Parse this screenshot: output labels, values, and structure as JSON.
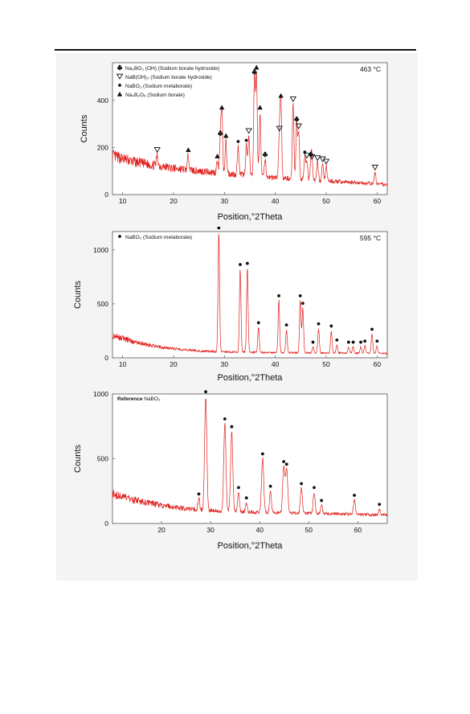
{
  "colors": {
    "trace": "#e0201c",
    "text": "#111111",
    "figure_bg": "#f4f4f4"
  },
  "chart_data": [
    {
      "type": "line",
      "annotation": "463 °C",
      "xlabel": "Position,°2Theta",
      "ylabel": "Counts",
      "xlim": [
        8,
        62
      ],
      "ylim": [
        0,
        560
      ],
      "xticks": [
        "10",
        "20",
        "30",
        "40",
        "50",
        "60"
      ],
      "yticks": [
        "0",
        "200",
        "400"
      ],
      "legend_position": "top-left",
      "legend": [
        {
          "symbol": "club",
          "formula": "Na₃BO₃ (OH)",
          "name": "(Sodium borate hydroxide)"
        },
        {
          "symbol": "triangle-down",
          "formula": "NaB(OH)₄",
          "name": "(Sodium borate hydroxide)"
        },
        {
          "symbol": "dot",
          "formula": "NaBO₂",
          "name": "(Sodium metaborate)"
        },
        {
          "symbol": "triangle-up",
          "formula": "Na₄B₂O₅",
          "name": "(Sodium borate)"
        }
      ],
      "background": [
        [
          8,
          165
        ],
        [
          12,
          140
        ],
        [
          16,
          125
        ],
        [
          20,
          112
        ],
        [
          25,
          100
        ],
        [
          30,
          90
        ],
        [
          35,
          82
        ],
        [
          40,
          72
        ],
        [
          45,
          65
        ],
        [
          50,
          58
        ],
        [
          55,
          52
        ],
        [
          60,
          45
        ],
        [
          62,
          42
        ]
      ],
      "peaks": [
        {
          "x": 16.8,
          "y": 170,
          "w": 0.15,
          "marker": "triangle-down"
        },
        {
          "x": 22.9,
          "y": 170,
          "w": 0.15,
          "marker": "triangle-up"
        },
        {
          "x": 28.6,
          "y": 143,
          "w": 0.15,
          "marker": "triangle-up"
        },
        {
          "x": 29.2,
          "y": 240,
          "w": 0.15,
          "marker": "club"
        },
        {
          "x": 29.5,
          "y": 350,
          "w": 0.15,
          "marker": "triangle-up"
        },
        {
          "x": 30.3,
          "y": 230,
          "w": 0.15,
          "marker": "triangle-up"
        },
        {
          "x": 32.7,
          "y": 205,
          "w": 0.15,
          "marker": "dot"
        },
        {
          "x": 34.3,
          "y": 210,
          "w": 0.15,
          "marker": "dot"
        },
        {
          "x": 34.8,
          "y": 250,
          "w": 0.15,
          "marker": "triangle-down"
        },
        {
          "x": 35.9,
          "y": 500,
          "w": 0.15,
          "marker": "club"
        },
        {
          "x": 36.3,
          "y": 520,
          "w": 0.15,
          "marker": "triangle-up"
        },
        {
          "x": 37.0,
          "y": 350,
          "w": 0.15,
          "marker": "triangle-up"
        },
        {
          "x": 38.0,
          "y": 150,
          "w": 0.15,
          "marker": "club"
        },
        {
          "x": 40.8,
          "y": 260,
          "w": 0.15,
          "marker": "triangle-down"
        },
        {
          "x": 41.1,
          "y": 400,
          "w": 0.15,
          "marker": "triangle-up"
        },
        {
          "x": 43.5,
          "y": 385,
          "w": 0.15,
          "marker": "triangle-down"
        },
        {
          "x": 44.2,
          "y": 300,
          "w": 0.15,
          "marker": "club"
        },
        {
          "x": 44.6,
          "y": 270,
          "w": 0.15,
          "marker": "triangle-down"
        },
        {
          "x": 45.8,
          "y": 160,
          "w": 0.15,
          "marker": "dot"
        },
        {
          "x": 46.2,
          "y": 145,
          "w": 0.15,
          "marker": "triangle-down"
        },
        {
          "x": 47.0,
          "y": 150,
          "w": 0.15,
          "marker": "club"
        },
        {
          "x": 47.2,
          "y": 140,
          "w": 0.15,
          "marker": "triangle-down"
        },
        {
          "x": 48.3,
          "y": 135,
          "w": 0.15,
          "marker": "triangle-down"
        },
        {
          "x": 49.3,
          "y": 130,
          "w": 0.15,
          "marker": "triangle-down"
        },
        {
          "x": 50.0,
          "y": 120,
          "w": 0.15,
          "marker": "triangle-down"
        },
        {
          "x": 59.6,
          "y": 95,
          "w": 0.15,
          "marker": "triangle-down"
        }
      ]
    },
    {
      "type": "line",
      "annotation": "595 °C",
      "xlabel": "Position,°2Theta",
      "ylabel": "Counts",
      "xlim": [
        8,
        62
      ],
      "ylim": [
        0,
        1170
      ],
      "xticks": [
        "10",
        "20",
        "30",
        "40",
        "50",
        "60"
      ],
      "yticks": [
        "0",
        "500",
        "1000"
      ],
      "legend_position": "top-left",
      "legend": [
        {
          "symbol": "dot",
          "formula": "NaBO₂",
          "name": "(Sodium metaborate)"
        }
      ],
      "background": [
        [
          8,
          210
        ],
        [
          10,
          180
        ],
        [
          12,
          150
        ],
        [
          15,
          120
        ],
        [
          18,
          95
        ],
        [
          22,
          75
        ],
        [
          26,
          62
        ],
        [
          30,
          55
        ],
        [
          40,
          48
        ],
        [
          50,
          45
        ],
        [
          62,
          42
        ]
      ],
      "peaks": [
        {
          "x": 28.9,
          "y": 1160,
          "w": 0.15,
          "marker": "dot"
        },
        {
          "x": 33.1,
          "y": 820,
          "w": 0.15,
          "marker": "dot"
        },
        {
          "x": 34.5,
          "y": 830,
          "w": 0.15,
          "marker": "dot"
        },
        {
          "x": 36.7,
          "y": 280,
          "w": 0.15,
          "marker": "dot"
        },
        {
          "x": 40.7,
          "y": 530,
          "w": 0.15,
          "marker": "dot"
        },
        {
          "x": 42.2,
          "y": 260,
          "w": 0.15,
          "marker": "dot"
        },
        {
          "x": 44.9,
          "y": 530,
          "w": 0.15,
          "marker": "dot"
        },
        {
          "x": 45.4,
          "y": 460,
          "w": 0.15,
          "marker": "dot"
        },
        {
          "x": 47.4,
          "y": 100,
          "w": 0.15,
          "marker": "dot"
        },
        {
          "x": 48.5,
          "y": 270,
          "w": 0.15,
          "marker": "dot"
        },
        {
          "x": 51.0,
          "y": 250,
          "w": 0.15,
          "marker": "dot"
        },
        {
          "x": 52.1,
          "y": 120,
          "w": 0.15,
          "marker": "dot"
        },
        {
          "x": 54.4,
          "y": 100,
          "w": 0.15,
          "marker": "dot"
        },
        {
          "x": 55.3,
          "y": 100,
          "w": 0.15,
          "marker": "dot"
        },
        {
          "x": 56.8,
          "y": 100,
          "w": 0.15,
          "marker": "dot"
        },
        {
          "x": 57.6,
          "y": 110,
          "w": 0.15,
          "marker": "dot"
        },
        {
          "x": 59.0,
          "y": 220,
          "w": 0.15,
          "marker": "dot"
        },
        {
          "x": 60.0,
          "y": 110,
          "w": 0.15,
          "marker": "dot"
        }
      ]
    },
    {
      "type": "line",
      "annotation": "",
      "xlabel": "Position,°2Theta",
      "ylabel": "Counts",
      "xlim": [
        10,
        66
      ],
      "ylim": [
        0,
        1000
      ],
      "xticks": [
        "20",
        "30",
        "40",
        "50",
        "60"
      ],
      "yticks": [
        "0",
        "500",
        "1000"
      ],
      "legend_position": "top-left",
      "legend": [
        {
          "symbol": "none",
          "formula": "Reference",
          "name": "NaBO₂"
        }
      ],
      "background": [
        [
          10,
          230
        ],
        [
          12,
          205
        ],
        [
          14,
          185
        ],
        [
          17,
          160
        ],
        [
          20,
          140
        ],
        [
          24,
          118
        ],
        [
          28,
          105
        ],
        [
          32,
          95
        ],
        [
          40,
          85
        ],
        [
          50,
          78
        ],
        [
          60,
          70
        ],
        [
          66,
          65
        ]
      ],
      "peaks": [
        {
          "x": 27.6,
          "y": 190,
          "w": 0.18,
          "marker": "dot"
        },
        {
          "x": 29.0,
          "y": 980,
          "w": 0.22,
          "marker": "dot"
        },
        {
          "x": 32.9,
          "y": 770,
          "w": 0.22,
          "marker": "dot"
        },
        {
          "x": 34.3,
          "y": 710,
          "w": 0.22,
          "marker": "dot"
        },
        {
          "x": 35.7,
          "y": 240,
          "w": 0.18,
          "marker": "dot"
        },
        {
          "x": 37.3,
          "y": 160,
          "w": 0.18,
          "marker": "dot"
        },
        {
          "x": 40.6,
          "y": 500,
          "w": 0.22,
          "marker": "dot"
        },
        {
          "x": 42.2,
          "y": 250,
          "w": 0.18,
          "marker": "dot"
        },
        {
          "x": 44.9,
          "y": 440,
          "w": 0.22,
          "marker": "dot"
        },
        {
          "x": 45.5,
          "y": 420,
          "w": 0.22,
          "marker": "dot"
        },
        {
          "x": 48.5,
          "y": 270,
          "w": 0.2,
          "marker": "dot"
        },
        {
          "x": 51.1,
          "y": 240,
          "w": 0.2,
          "marker": "dot"
        },
        {
          "x": 52.6,
          "y": 140,
          "w": 0.18,
          "marker": "dot"
        },
        {
          "x": 59.3,
          "y": 180,
          "w": 0.2,
          "marker": "dot"
        },
        {
          "x": 64.4,
          "y": 110,
          "w": 0.18,
          "marker": "dot"
        }
      ]
    }
  ]
}
